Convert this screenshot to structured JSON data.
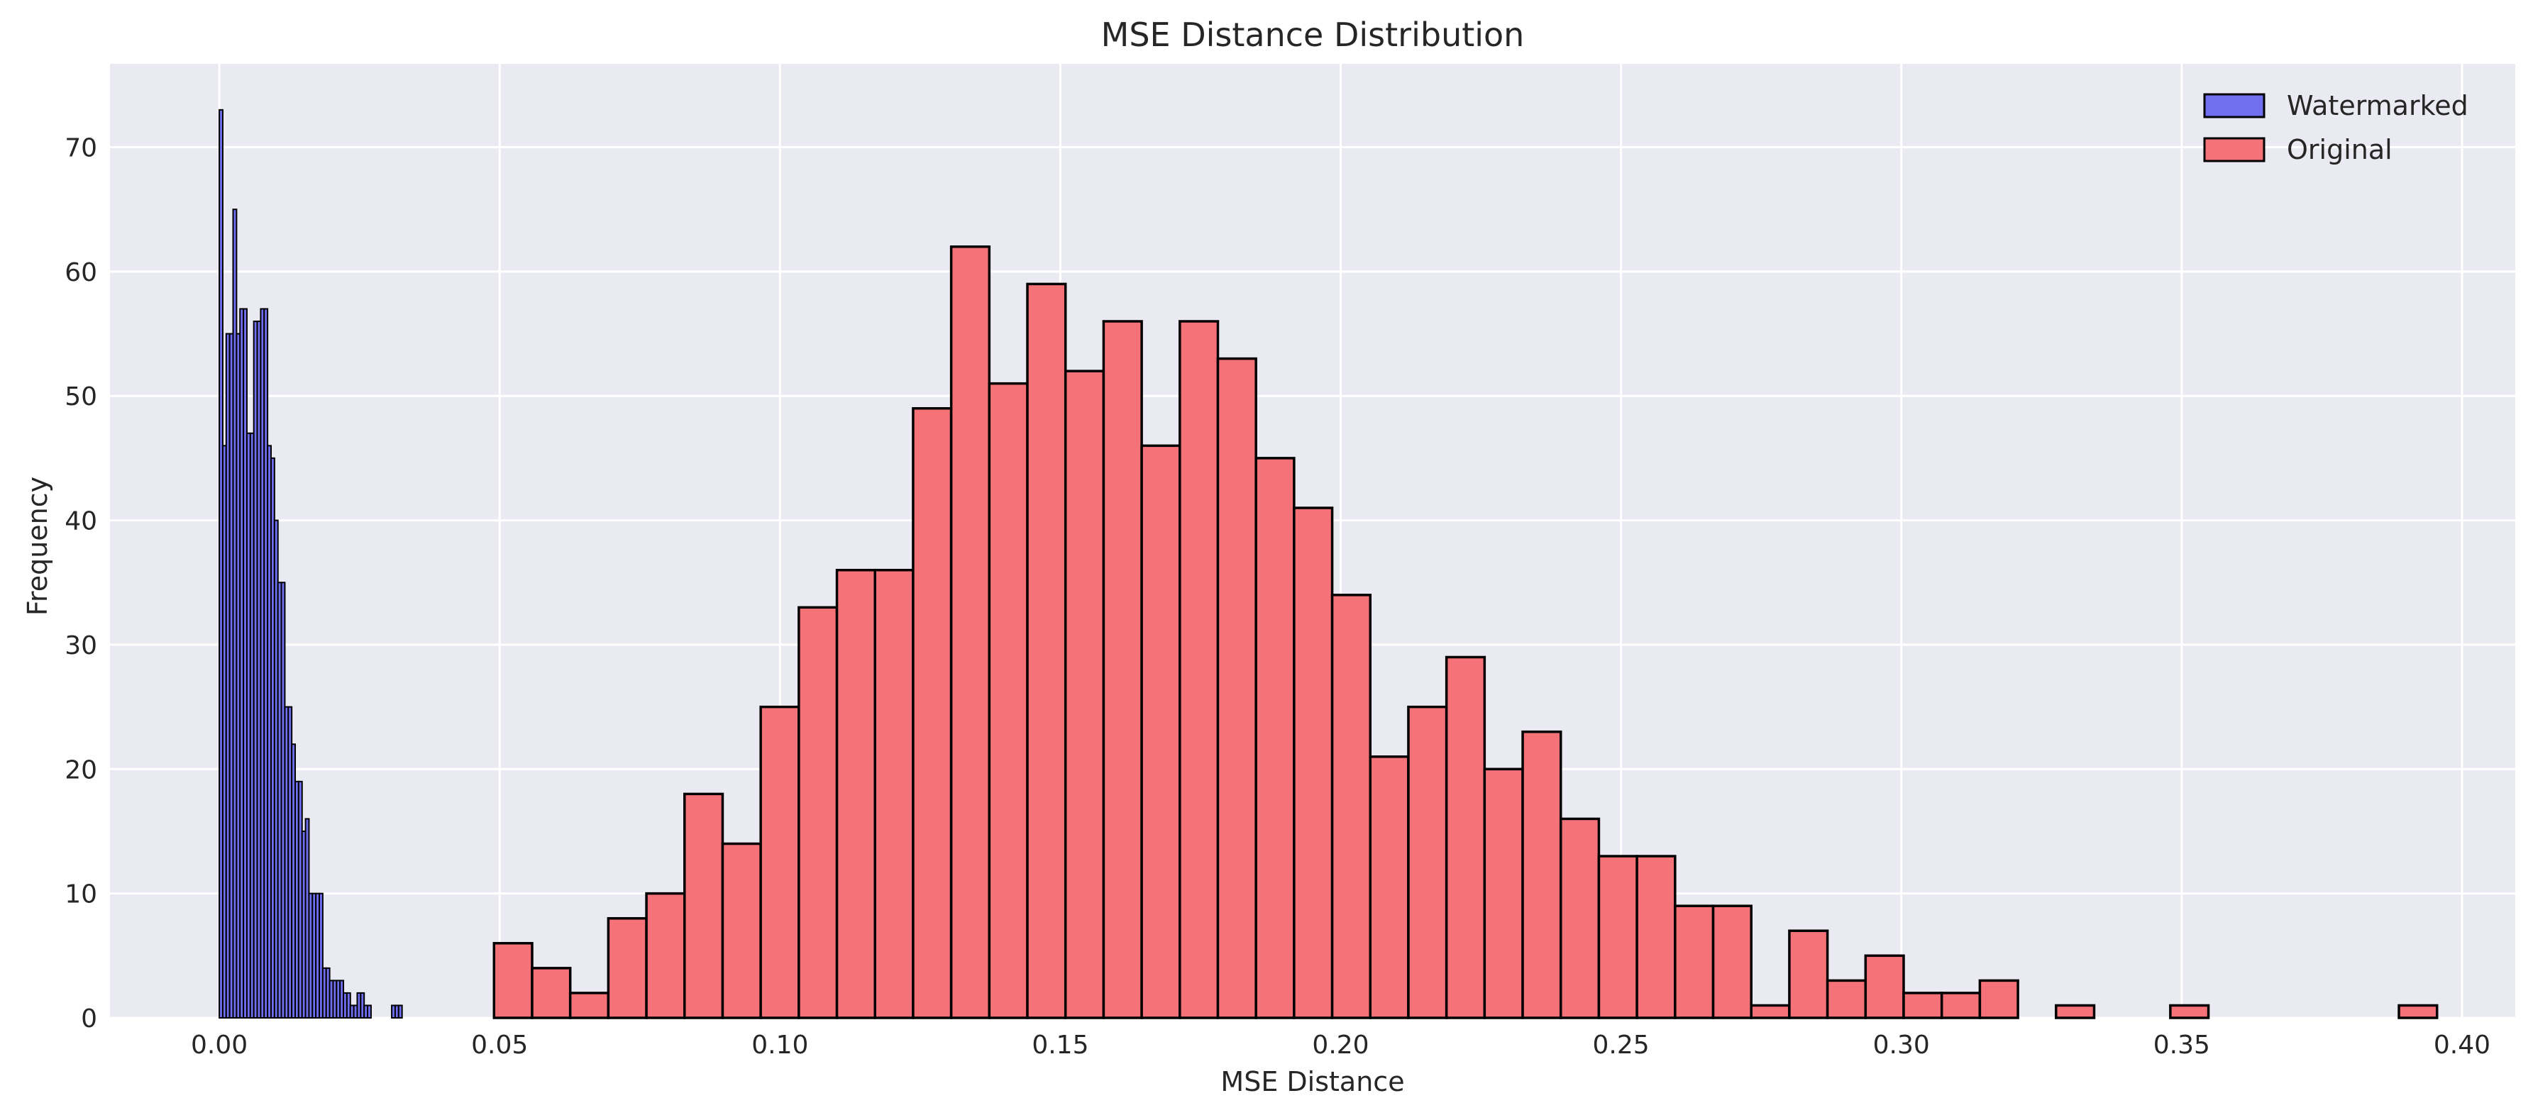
{
  "chart_data": {
    "type": "histogram",
    "title": "MSE Distance Distribution",
    "xlabel": "MSE Distance",
    "ylabel": "Frequency",
    "xlim": [
      -0.0195,
      0.4095
    ],
    "ylim": [
      0,
      76.7
    ],
    "xticks": [
      0.0,
      0.05,
      0.1,
      0.15,
      0.2,
      0.25,
      0.3,
      0.35,
      0.4
    ],
    "xtick_labels": [
      "0.00",
      "0.05",
      "0.10",
      "0.15",
      "0.20",
      "0.25",
      "0.30",
      "0.35",
      "0.40"
    ],
    "yticks": [
      0,
      10,
      20,
      30,
      40,
      50,
      60,
      70
    ],
    "ytick_labels": [
      "0",
      "10",
      "20",
      "30",
      "40",
      "50",
      "60",
      "70"
    ],
    "grid": true,
    "legend_position": "top-right",
    "series": [
      {
        "name": "Watermarked",
        "color": "#6f6ff0",
        "edge_color": "#000000",
        "bin_start": 0.0,
        "bin_width": 0.000615,
        "values": [
          73,
          46,
          55,
          55,
          65,
          55,
          57,
          57,
          47,
          47,
          56,
          56,
          57,
          57,
          46,
          45,
          40,
          35,
          35,
          25,
          25,
          22,
          19,
          19,
          15,
          16,
          10,
          10,
          10,
          10,
          4,
          4,
          3,
          3,
          3,
          3,
          2,
          2,
          1,
          1,
          2,
          2,
          1,
          1,
          0,
          0,
          0,
          0,
          0,
          0,
          1,
          1,
          1,
          0,
          0,
          0
        ]
      },
      {
        "name": "Original",
        "color": "#f47278",
        "edge_color": "#000000",
        "bin_start": 0.049,
        "bin_width": 0.006795,
        "values": [
          6,
          4,
          2,
          8,
          10,
          18,
          14,
          25,
          33,
          36,
          36,
          49,
          62,
          51,
          59,
          52,
          56,
          46,
          56,
          53,
          45,
          41,
          34,
          21,
          25,
          29,
          20,
          23,
          16,
          13,
          13,
          9,
          9,
          1,
          7,
          3,
          5,
          2,
          2,
          3,
          0,
          1,
          0,
          0,
          1,
          0,
          0,
          0,
          0,
          0,
          1
        ]
      }
    ]
  }
}
